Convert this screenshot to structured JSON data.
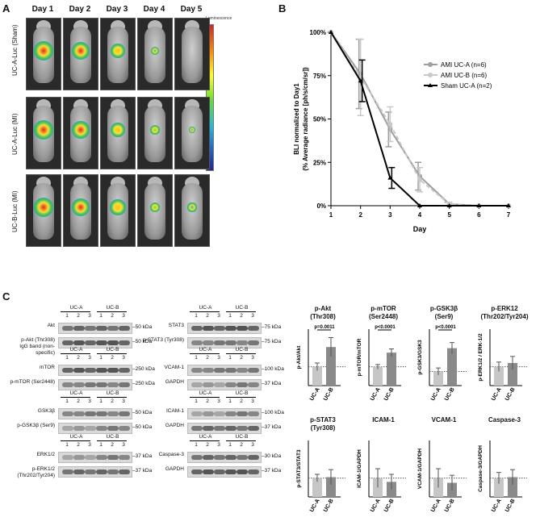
{
  "panels": {
    "a": "A",
    "b": "B",
    "c": "C"
  },
  "panel_a": {
    "days": [
      "Day 1",
      "Day 2",
      "Day 3",
      "Day 4",
      "Day 5"
    ],
    "rows": [
      "UC-A-Luc (Sham)",
      "UC-A-Luc (MI)",
      "UC-B-Luc (MI)"
    ],
    "colorbar_title": "Luminescence"
  },
  "chart_data": [
    {
      "type": "line",
      "panel": "B",
      "xlabel": "Day",
      "ylabel": "BLI  normalized to Day1\n(% Average radiance [ph/s/cm/sr])",
      "x": [
        1,
        2,
        3,
        4,
        5,
        6,
        7
      ],
      "xlim": [
        1,
        7
      ],
      "ylim": [
        0,
        100
      ],
      "yticks": [
        "0%",
        "25%",
        "50%",
        "75%",
        "100%"
      ],
      "series": [
        {
          "name": "AMI UC-A (n=6)",
          "color": "#9e9e9e",
          "values": [
            100,
            76,
            44,
            17,
            1,
            0,
            0
          ],
          "err": [
            0,
            20,
            10,
            8,
            1,
            0,
            0
          ]
        },
        {
          "name": "AMI UC-B (n=6)",
          "color": "#c8c8c8",
          "dashed": true,
          "values": [
            100,
            74,
            47,
            15,
            1,
            0,
            0
          ],
          "err": [
            0,
            22,
            10,
            7,
            1,
            0,
            0
          ]
        },
        {
          "name": "Sham UC-A (n=2)",
          "color": "#000000",
          "values": [
            100,
            72,
            16,
            0,
            0,
            0,
            0
          ],
          "err": [
            0,
            12,
            6,
            0,
            0,
            0,
            0
          ]
        }
      ],
      "legend": "top-right"
    },
    {
      "type": "bar",
      "title": "p-Akt\n(Thr308)",
      "ylabel": "p-Akt/Akt",
      "categories": [
        "UC-A",
        "UC-B"
      ],
      "values": [
        1.0,
        2.05
      ],
      "err": [
        0.2,
        0.5
      ],
      "ylim": [
        0,
        3
      ],
      "pvalue": "p=0.0011"
    },
    {
      "type": "bar",
      "title": "p-mTOR\n(Ser2448)",
      "ylabel": "p-mTOR/mTOR",
      "categories": [
        "UC-A",
        "UC-B"
      ],
      "values": [
        1.0,
        1.75
      ],
      "err": [
        0.12,
        0.2
      ],
      "ylim": [
        0,
        3
      ],
      "pvalue": "p<0.0001"
    },
    {
      "type": "bar",
      "title": "p-GSK3β\n(Ser9)",
      "ylabel": "p-GSK3/GSK3",
      "categories": [
        "UC-A",
        "UC-B"
      ],
      "values": [
        1.0,
        2.65
      ],
      "err": [
        0.25,
        0.4
      ],
      "ylim": [
        0,
        4
      ],
      "pvalue": "p<0.0001"
    },
    {
      "type": "bar",
      "title": "p-ERK12\n(Thr202/Tyr204)",
      "ylabel": "p-ERK1/2 / ERK-1/2",
      "categories": [
        "UC-A",
        "UC-B"
      ],
      "values": [
        1.0,
        1.2
      ],
      "err": [
        0.25,
        0.35
      ],
      "ylim": [
        0,
        3
      ],
      "pvalue": ""
    },
    {
      "type": "bar",
      "title": "p-STAT3\n(Tyr308)",
      "ylabel": "p-STAT3/STAT3",
      "categories": [
        "UC-A",
        "UC-B"
      ],
      "values": [
        1.0,
        1.05
      ],
      "err": [
        0.2,
        0.4
      ],
      "ylim": [
        0,
        3
      ],
      "pvalue": ""
    },
    {
      "type": "bar",
      "title": "ICAM-1",
      "ylabel": "ICAM-1/GAPDH",
      "categories": [
        "UC-A",
        "UC-B"
      ],
      "values": [
        1.0,
        0.8
      ],
      "err": [
        0.5,
        0.4
      ],
      "ylim": [
        0,
        3
      ],
      "pvalue": ""
    },
    {
      "type": "bar",
      "title": "VCAM-1",
      "ylabel": "VCAM-1/GAPDH",
      "categories": [
        "UC-A",
        "UC-B"
      ],
      "values": [
        1.0,
        0.75
      ],
      "err": [
        0.5,
        0.4
      ],
      "ylim": [
        0,
        3
      ],
      "pvalue": ""
    },
    {
      "type": "bar",
      "title": "Caspase-3",
      "ylabel": "Caspase-3/GAPDH",
      "categories": [
        "UC-A",
        "UC-B"
      ],
      "values": [
        1.0,
        1.05
      ],
      "err": [
        0.3,
        0.4
      ],
      "ylim": [
        0,
        3
      ],
      "pvalue": ""
    }
  ],
  "blots": {
    "groups": [
      "UC-A",
      "UC-B"
    ],
    "lanes": [
      "1",
      "2",
      "3",
      "1",
      "2",
      "3"
    ],
    "left": [
      {
        "rows": [
          "Akt",
          "p-Akt (Thr308)\nIgG band (non-specific)"
        ],
        "kda": [
          "50 kDa",
          "50 kDa"
        ]
      },
      {
        "rows": [
          "mTOR",
          "p-mTOR (Ser2448)"
        ],
        "kda": [
          "250 kDa",
          "250 kDa"
        ]
      },
      {
        "rows": [
          "GSK3β",
          "p-GSK3β (Ser9)"
        ],
        "kda": [
          "50 kDa",
          "50 kDa"
        ]
      },
      {
        "rows": [
          "ERK1/2",
          "p-ERK1/2\n(Thr202/Tyr204)"
        ],
        "kda": [
          "37 kDa",
          "37 kDa"
        ]
      }
    ],
    "right": [
      {
        "rows": [
          "STAT3",
          "p-STAT3 (Tyr308)"
        ],
        "kda": [
          "75 kDa",
          "75 kDa"
        ]
      },
      {
        "rows": [
          "VCAM-1",
          "GAPDH"
        ],
        "kda": [
          "100 kDa",
          "37 kDa"
        ]
      },
      {
        "rows": [
          "ICAM-1",
          "GAPDH"
        ],
        "kda": [
          "100 kDa",
          "37 kDa"
        ]
      },
      {
        "rows": [
          "Caspase-3",
          "GAPDH"
        ],
        "kda": [
          "30 kDa",
          "37 kDa"
        ]
      }
    ]
  }
}
